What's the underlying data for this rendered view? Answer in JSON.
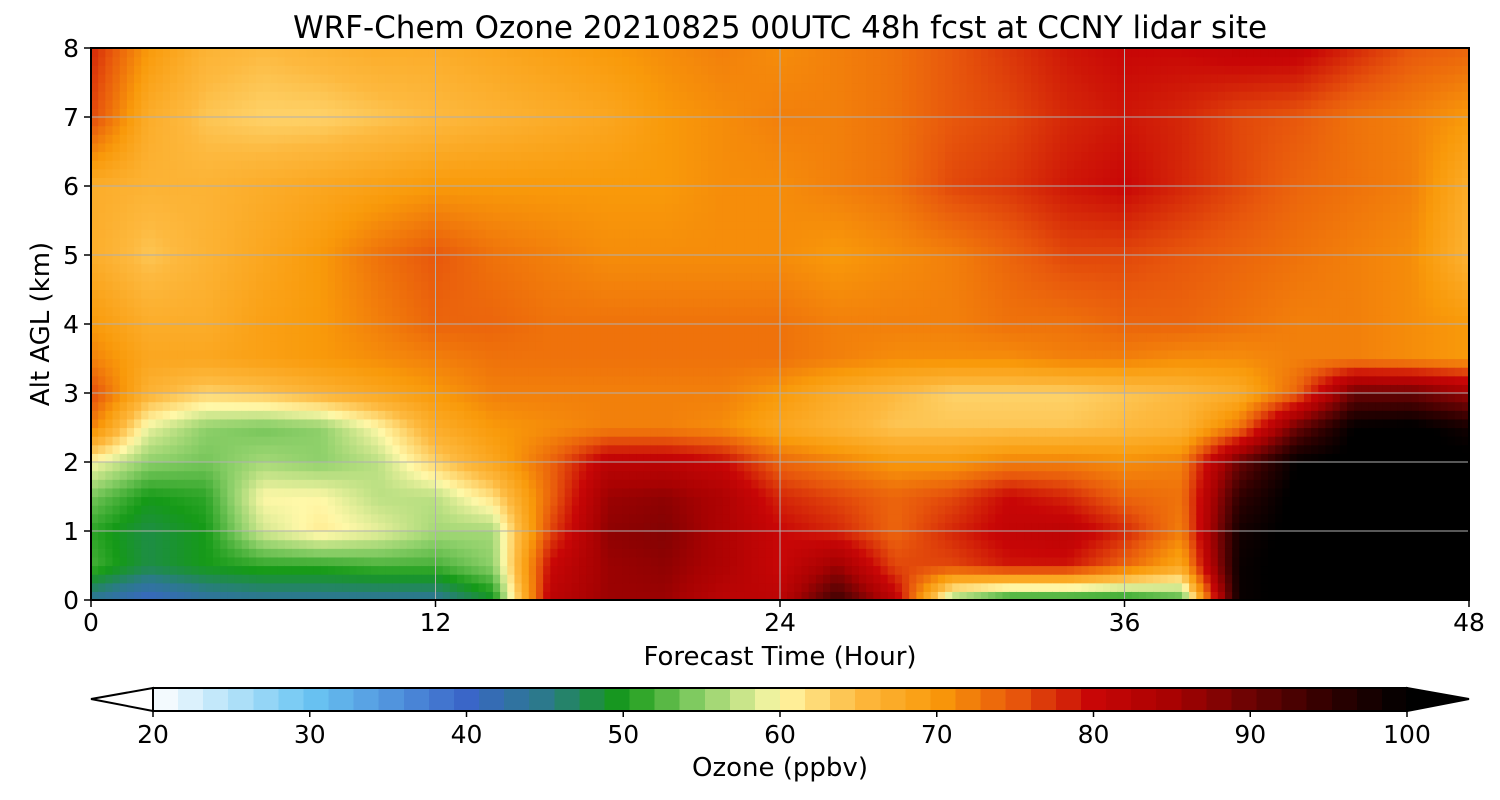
{
  "chart_data": {
    "type": "heatmap",
    "title": "WRF-Chem Ozone  20210825 00UTC 48h fcst at CCNY lidar site",
    "xlabel": "Forecast Time (Hour)",
    "ylabel": "Alt AGL (km)",
    "xlim": [
      0,
      48
    ],
    "ylim": [
      0,
      8
    ],
    "x_ticks": [
      0,
      12,
      24,
      36,
      48
    ],
    "y_ticks": [
      0,
      1,
      2,
      3,
      4,
      5,
      6,
      7,
      8
    ],
    "grid": true,
    "colorbar": {
      "label": "Ozone  (ppbv)",
      "min": 20,
      "max": 100,
      "ticks": [
        20,
        30,
        40,
        50,
        60,
        70,
        80,
        90,
        100
      ],
      "extend": "both",
      "colors": [
        {
          "value": 20,
          "color": "#ffffff"
        },
        {
          "value": 30,
          "color": "#6ac5f3"
        },
        {
          "value": 40,
          "color": "#3a66c8"
        },
        {
          "value": 45,
          "color": "#2b7a8a"
        },
        {
          "value": 50,
          "color": "#159a17"
        },
        {
          "value": 55,
          "color": "#8ed06a"
        },
        {
          "value": 60,
          "color": "#fff8a8"
        },
        {
          "value": 65,
          "color": "#fdb93f"
        },
        {
          "value": 70,
          "color": "#f99a0a"
        },
        {
          "value": 75,
          "color": "#e8580c"
        },
        {
          "value": 80,
          "color": "#c80606"
        },
        {
          "value": 85,
          "color": "#a80202"
        },
        {
          "value": 90,
          "color": "#6a0303"
        },
        {
          "value": 95,
          "color": "#300000"
        },
        {
          "value": 100,
          "color": "#000000"
        }
      ]
    },
    "x": [
      0,
      2,
      4,
      6,
      8,
      10,
      12,
      14,
      16,
      18,
      20,
      22,
      24,
      26,
      28,
      30,
      32,
      34,
      36,
      38,
      40,
      42,
      44,
      46,
      48
    ],
    "y": [
      0,
      0.5,
      1,
      1.5,
      2,
      2.5,
      3,
      3.5,
      4,
      5,
      6,
      7,
      8
    ],
    "z": [
      [
        44,
        40,
        43,
        44,
        44,
        44,
        44,
        49,
        82,
        86,
        86,
        82,
        82,
        94,
        82,
        55,
        49,
        49,
        49,
        52,
        99,
        101,
        101,
        101,
        101
      ],
      [
        52,
        48,
        50,
        51,
        51,
        52,
        52,
        55,
        80,
        86,
        87,
        84,
        80,
        86,
        76,
        76,
        79,
        79,
        74,
        68,
        99,
        101,
        101,
        101,
        101
      ],
      [
        51,
        48,
        50,
        58,
        61,
        59,
        56,
        56,
        76,
        87,
        88,
        84,
        80,
        78,
        74,
        78,
        81,
        82,
        78,
        72,
        98,
        101,
        101,
        101,
        101
      ],
      [
        54,
        50,
        51,
        60,
        60,
        57,
        57,
        62,
        74,
        86,
        87,
        84,
        78,
        76,
        74,
        76,
        80,
        78,
        74,
        73,
        95,
        101,
        101,
        101,
        101
      ],
      [
        60,
        55,
        54,
        56,
        55,
        57,
        63,
        68,
        74,
        82,
        82,
        80,
        74,
        72,
        70,
        70,
        72,
        72,
        71,
        72,
        90,
        100,
        101,
        101,
        101
      ],
      [
        72,
        59,
        55,
        54,
        55,
        60,
        67,
        70,
        71,
        72,
        72,
        71,
        68,
        66,
        64,
        64,
        64,
        64,
        65,
        66,
        73,
        90,
        100,
        101,
        98
      ],
      [
        76,
        66,
        63,
        64,
        66,
        68,
        70,
        72,
        72,
        72,
        72,
        72,
        70,
        67,
        65,
        63,
        63,
        63,
        64,
        65,
        67,
        74,
        90,
        90,
        86
      ],
      [
        72,
        68,
        68,
        69,
        70,
        71,
        72,
        73,
        73,
        73,
        73,
        73,
        73,
        72,
        71,
        71,
        71,
        72,
        72,
        71,
        71,
        72,
        72,
        71,
        70
      ],
      [
        70,
        67,
        67,
        69,
        70,
        72,
        74,
        74,
        73,
        73,
        73,
        73,
        73,
        72,
        72,
        72,
        73,
        73,
        74,
        74,
        73,
        72,
        72,
        71,
        70
      ],
      [
        67,
        64,
        66,
        68,
        70,
        73,
        75,
        73,
        72,
        71,
        71,
        71,
        71,
        70,
        71,
        72,
        74,
        76,
        76,
        75,
        74,
        73,
        72,
        71,
        66
      ],
      [
        67,
        66,
        66,
        67,
        68,
        69,
        70,
        70,
        70,
        70,
        70,
        71,
        71,
        72,
        73,
        76,
        77,
        79,
        80,
        78,
        76,
        74,
        73,
        72,
        67
      ],
      [
        76,
        67,
        64,
        63,
        63,
        64,
        65,
        66,
        67,
        68,
        70,
        71,
        72,
        72,
        73,
        75,
        76,
        78,
        79,
        78,
        76,
        75,
        73,
        72,
        70
      ],
      [
        78,
        70,
        66,
        65,
        66,
        67,
        67,
        68,
        69,
        70,
        71,
        72,
        71,
        72,
        73,
        75,
        77,
        79,
        80,
        80,
        81,
        81,
        78,
        75,
        74
      ]
    ]
  }
}
